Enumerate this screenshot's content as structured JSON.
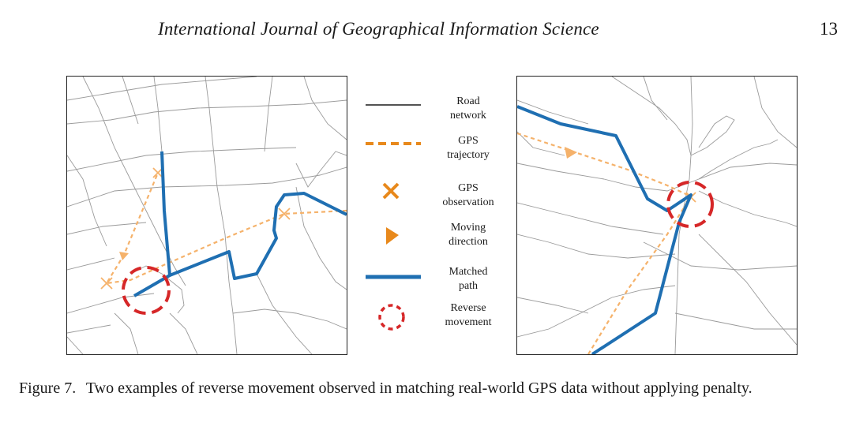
{
  "header": {
    "journal_title": "International Journal of Geographical Information Science",
    "page_number": "13"
  },
  "legend": {
    "items": [
      {
        "id": "road",
        "label_line1": "Road",
        "label_line2": "network",
        "color": "#1a1a1a"
      },
      {
        "id": "gps-trajectory",
        "label_line1": "GPS",
        "label_line2": "trajectory",
        "color": "#e8891c"
      },
      {
        "id": "gps-observation",
        "label_line1": "GPS",
        "label_line2": "observation",
        "color": "#e8891c"
      },
      {
        "id": "moving-direction",
        "label_line1": "Moving",
        "label_line2": "direction",
        "color": "#e8891c"
      },
      {
        "id": "matched-path",
        "label_line1": "Matched",
        "label_line2": "path",
        "color": "#1f6fb2"
      },
      {
        "id": "reverse-movement",
        "label_line1": "Reverse",
        "label_line2": "movement",
        "color": "#d62728"
      }
    ]
  },
  "colors": {
    "road": "#9a9a9a",
    "trajectory": "#f5b26b",
    "matched": "#1f6fb2",
    "reverse": "#d62728"
  },
  "caption": {
    "label": "Figure 7.",
    "text": "Two examples of reverse movement observed in matching real-world GPS data without applying penalty."
  }
}
